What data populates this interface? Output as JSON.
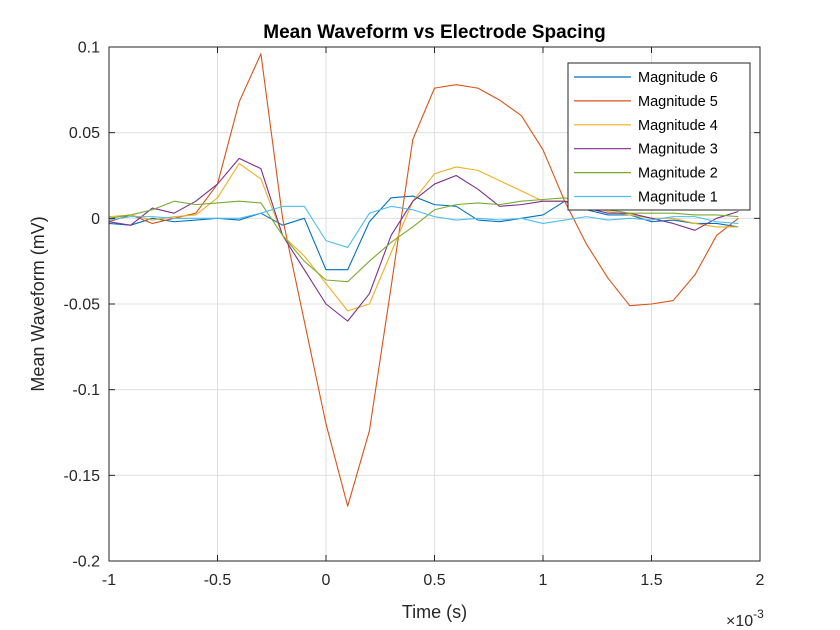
{
  "chart_data": {
    "type": "line",
    "title": "Mean Waveform vs Electrode Spacing",
    "xlabel": "Time (s)",
    "ylabel": "Mean Waveform (mV)",
    "x_exponent_label": "×10",
    "x_exponent_power": "-3",
    "xlim": [
      -1,
      2
    ],
    "ylim": [
      -0.2,
      0.1
    ],
    "xticks": [
      -1,
      -0.5,
      0,
      0.5,
      1,
      1.5,
      2
    ],
    "xtick_labels": [
      "-1",
      "-0.5",
      "0",
      "0.5",
      "1",
      "1.5",
      "2"
    ],
    "yticks": [
      -0.2,
      -0.15,
      -0.1,
      -0.05,
      0,
      0.05,
      0.1
    ],
    "ytick_labels": [
      "-0.2",
      "-0.15",
      "-0.1",
      "-0.05",
      "0",
      "0.05",
      "0.1"
    ],
    "grid": true,
    "legend_position": "top-right",
    "x": [
      -1.0,
      -0.9,
      -0.8,
      -0.7,
      -0.6,
      -0.5,
      -0.4,
      -0.3,
      -0.2,
      -0.1,
      0.0,
      0.1,
      0.2,
      0.3,
      0.4,
      0.5,
      0.6,
      0.7,
      0.8,
      0.9,
      1.0,
      1.1,
      1.2,
      1.3,
      1.4,
      1.5,
      1.6,
      1.7,
      1.8,
      1.9
    ],
    "series": [
      {
        "name": "Magnitude 6",
        "color": "#0072BD",
        "values": [
          -0.003,
          -0.004,
          0.0,
          -0.002,
          -0.001,
          0.0,
          -0.001,
          0.003,
          -0.004,
          0.0,
          -0.03,
          -0.03,
          -0.002,
          0.012,
          0.013,
          0.008,
          0.007,
          -0.001,
          -0.002,
          0.0,
          0.002,
          0.01,
          0.005,
          0.002,
          0.002,
          -0.002,
          -0.001,
          -0.003,
          -0.003,
          -0.005
        ]
      },
      {
        "name": "Magnitude 5",
        "color": "#D95319",
        "values": [
          -0.002,
          0.002,
          -0.003,
          0.0,
          0.003,
          0.02,
          0.068,
          0.096,
          0.0,
          -0.06,
          -0.12,
          -0.168,
          -0.124,
          -0.04,
          0.046,
          0.076,
          0.078,
          0.076,
          0.069,
          0.06,
          0.04,
          0.01,
          -0.015,
          -0.035,
          -0.051,
          -0.05,
          -0.048,
          -0.033,
          -0.01,
          0.0
        ]
      },
      {
        "name": "Magnitude 4",
        "color": "#EDB120",
        "values": [
          0.001,
          0.002,
          -0.001,
          0.001,
          0.002,
          0.012,
          0.032,
          0.023,
          -0.01,
          -0.022,
          -0.038,
          -0.054,
          -0.05,
          -0.02,
          0.01,
          0.026,
          0.03,
          0.028,
          0.022,
          0.016,
          0.01,
          0.01,
          0.008,
          0.004,
          0.002,
          0.0,
          0.0,
          -0.003,
          -0.005,
          -0.005
        ]
      },
      {
        "name": "Magnitude 3",
        "color": "#7E2F8E",
        "values": [
          -0.002,
          -0.004,
          0.006,
          0.003,
          0.01,
          0.02,
          0.035,
          0.029,
          -0.01,
          -0.03,
          -0.05,
          -0.06,
          -0.044,
          -0.01,
          0.01,
          0.02,
          0.025,
          0.017,
          0.007,
          0.008,
          0.01,
          0.01,
          0.006,
          0.003,
          0.003,
          0.0,
          -0.003,
          -0.007,
          0.0,
          0.004
        ]
      },
      {
        "name": "Magnitude 2",
        "color": "#77AC30",
        "values": [
          0.0,
          0.002,
          0.005,
          0.01,
          0.008,
          0.009,
          0.01,
          0.009,
          -0.01,
          -0.025,
          -0.036,
          -0.037,
          -0.025,
          -0.014,
          -0.005,
          0.005,
          0.008,
          0.009,
          0.008,
          0.01,
          0.011,
          0.012,
          0.009,
          0.005,
          0.003,
          0.003,
          0.003,
          0.002,
          0.002,
          0.001
        ]
      },
      {
        "name": "Magnitude 1",
        "color": "#4DBEEE",
        "values": [
          -0.001,
          0.001,
          0.001,
          0.0,
          0.0,
          0.0,
          0.0,
          0.003,
          0.007,
          0.007,
          -0.013,
          -0.017,
          0.003,
          0.007,
          0.005,
          0.001,
          -0.001,
          0.0,
          -0.001,
          0.0,
          -0.003,
          -0.001,
          0.001,
          -0.001,
          0.0,
          -0.001,
          0.001,
          0.001,
          -0.002,
          -0.003
        ]
      }
    ]
  }
}
